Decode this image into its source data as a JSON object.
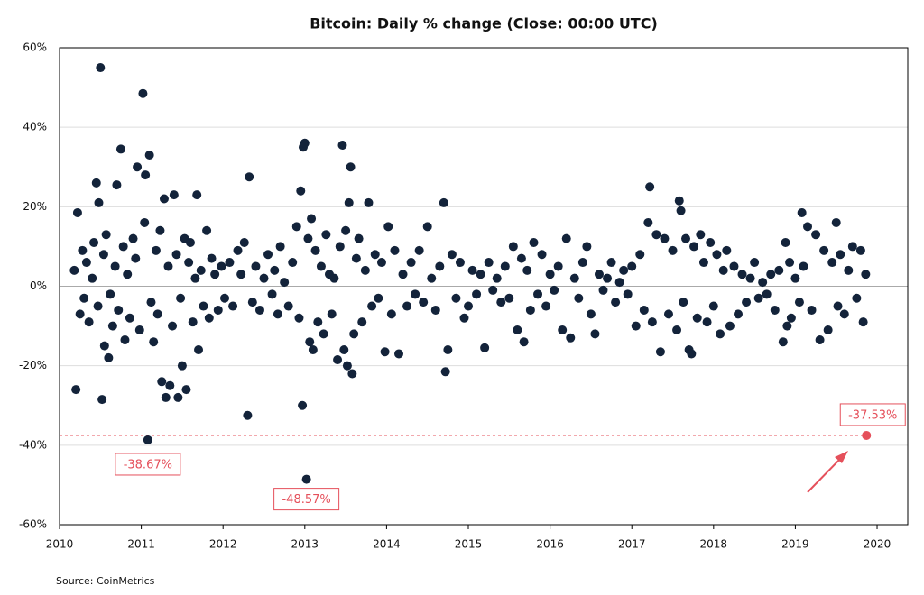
{
  "chart_data": {
    "type": "scatter",
    "title": "Bitcoin: Daily % change (Close: 00:00 UTC)",
    "source": "Source: CoinMetrics",
    "xlim": [
      2010,
      2020.375
    ],
    "xticks": [
      2010,
      2011,
      2012,
      2013,
      2014,
      2015,
      2016,
      2017,
      2018,
      2019,
      2020
    ],
    "ylim": [
      -60,
      60
    ],
    "yticks": [
      {
        "value": -60,
        "label": "-60%"
      },
      {
        "value": -40,
        "label": "-40%"
      },
      {
        "value": -20,
        "label": "-20%"
      },
      {
        "value": 0,
        "label": "0%"
      },
      {
        "value": 20,
        "label": "20%"
      },
      {
        "value": 40,
        "label": "40%"
      },
      {
        "value": 60,
        "label": "60%"
      }
    ],
    "grid": true,
    "series": [
      {
        "color": "#13233a",
        "x": [
          2010.18,
          2010.2,
          2010.22,
          2010.25,
          2010.28,
          2010.3,
          2010.33,
          2010.36,
          2010.4,
          2010.42,
          2010.45,
          2010.47,
          2010.48,
          2010.5,
          2010.52,
          2010.54,
          2010.55,
          2010.57,
          2010.6,
          2010.62,
          2010.65,
          2010.68,
          2010.7,
          2010.72,
          2010.75,
          2010.78,
          2010.8,
          2010.83,
          2010.86,
          2010.9,
          2010.93,
          2010.95,
          2010.98,
          2011.02,
          2011.04,
          2011.05,
          2011.08,
          2011.1,
          2011.12,
          2011.15,
          2011.18,
          2011.2,
          2011.23,
          2011.25,
          2011.28,
          2011.3,
          2011.33,
          2011.35,
          2011.38,
          2011.4,
          2011.43,
          2011.45,
          2011.48,
          2011.5,
          2011.53,
          2011.55,
          2011.58,
          2011.6,
          2011.63,
          2011.66,
          2011.68,
          2011.7,
          2011.73,
          2011.76,
          2011.8,
          2011.83,
          2011.86,
          2011.9,
          2011.94,
          2011.98,
          2012.02,
          2012.08,
          2012.12,
          2012.18,
          2012.22,
          2012.26,
          2012.3,
          2012.32,
          2012.36,
          2012.4,
          2012.45,
          2012.5,
          2012.55,
          2012.6,
          2012.63,
          2012.67,
          2012.7,
          2012.75,
          2012.8,
          2012.85,
          2012.9,
          2012.93,
          2012.95,
          2012.97,
          2012.98,
          2013.0,
          2013.02,
          2013.04,
          2013.06,
          2013.08,
          2013.1,
          2013.13,
          2013.16,
          2013.2,
          2013.23,
          2013.26,
          2013.3,
          2013.33,
          2013.36,
          2013.4,
          2013.43,
          2013.46,
          2013.48,
          2013.5,
          2013.52,
          2013.54,
          2013.56,
          2013.58,
          2013.6,
          2013.63,
          2013.66,
          2013.7,
          2013.74,
          2013.78,
          2013.82,
          2013.86,
          2013.9,
          2013.94,
          2013.98,
          2014.02,
          2014.06,
          2014.1,
          2014.15,
          2014.2,
          2014.25,
          2014.3,
          2014.35,
          2014.4,
          2014.45,
          2014.5,
          2014.55,
          2014.6,
          2014.65,
          2014.7,
          2014.72,
          2014.75,
          2014.8,
          2014.85,
          2014.9,
          2014.95,
          2015.0,
          2015.05,
          2015.1,
          2015.15,
          2015.2,
          2015.25,
          2015.3,
          2015.35,
          2015.4,
          2015.45,
          2015.5,
          2015.55,
          2015.6,
          2015.65,
          2015.68,
          2015.72,
          2015.76,
          2015.8,
          2015.85,
          2015.9,
          2015.95,
          2016.0,
          2016.05,
          2016.1,
          2016.15,
          2016.2,
          2016.25,
          2016.3,
          2016.35,
          2016.4,
          2016.45,
          2016.5,
          2016.55,
          2016.6,
          2016.65,
          2016.7,
          2016.75,
          2016.8,
          2016.85,
          2016.9,
          2016.95,
          2017.0,
          2017.05,
          2017.1,
          2017.15,
          2017.2,
          2017.22,
          2017.25,
          2017.3,
          2017.35,
          2017.4,
          2017.45,
          2017.5,
          2017.55,
          2017.58,
          2017.6,
          2017.63,
          2017.66,
          2017.7,
          2017.73,
          2017.76,
          2017.8,
          2017.84,
          2017.88,
          2017.92,
          2017.96,
          2018.0,
          2018.04,
          2018.08,
          2018.12,
          2018.16,
          2018.2,
          2018.25,
          2018.3,
          2018.35,
          2018.4,
          2018.45,
          2018.5,
          2018.55,
          2018.6,
          2018.65,
          2018.7,
          2018.75,
          2018.8,
          2018.85,
          2018.88,
          2018.9,
          2018.93,
          2018.95,
          2019.0,
          2019.05,
          2019.08,
          2019.1,
          2019.15,
          2019.2,
          2019.25,
          2019.3,
          2019.35,
          2019.4,
          2019.45,
          2019.5,
          2019.52,
          2019.55,
          2019.6,
          2019.65,
          2019.7,
          2019.75,
          2019.8,
          2019.83,
          2019.86
        ],
        "values": [
          4,
          -26,
          18.5,
          -7,
          9,
          -3,
          6,
          -9,
          2,
          11,
          26,
          -5,
          21,
          55,
          -28.5,
          8,
          -15,
          13,
          -18,
          -2,
          -10,
          5,
          25.5,
          -6,
          34.5,
          10,
          -13.5,
          3,
          -8,
          12,
          7,
          30,
          -11,
          48.5,
          16,
          28,
          -38.67,
          33,
          -4,
          -14,
          9,
          -7,
          14,
          -24,
          22,
          -28,
          5,
          -25,
          -10,
          23,
          8,
          -28,
          -3,
          -20,
          12,
          -26,
          6,
          11,
          -9,
          2,
          23,
          -16,
          4,
          -5,
          14,
          -8,
          7,
          3,
          -6,
          5,
          -3,
          6,
          -5,
          9,
          3,
          11,
          -32.5,
          27.5,
          -4,
          5,
          -6,
          2,
          8,
          -2,
          4,
          -7,
          10,
          1,
          -5,
          6,
          15,
          -8,
          24,
          -30,
          35,
          36,
          -48.57,
          12,
          -14,
          17,
          -16,
          9,
          -9,
          5,
          -12,
          13,
          3,
          -7,
          2,
          -18.5,
          10,
          35.5,
          -16,
          14,
          -20,
          21,
          30,
          -22,
          -12,
          7,
          12,
          -9,
          4,
          21,
          -5,
          8,
          -3,
          6,
          -16.5,
          15,
          -7,
          9,
          -17,
          3,
          -5,
          6,
          -2,
          9,
          -4,
          15,
          2,
          -6,
          5,
          21,
          -21.5,
          -16,
          8,
          -3,
          6,
          -8,
          -5,
          4,
          -2,
          3,
          -15.5,
          6,
          -1,
          2,
          -4,
          5,
          -3,
          10,
          -11,
          7,
          -14,
          4,
          -6,
          11,
          -2,
          8,
          -5,
          3,
          -1,
          5,
          -11,
          12,
          -13,
          2,
          -3,
          6,
          10,
          -7,
          -12,
          3,
          -1,
          2,
          6,
          -4,
          1,
          4,
          -2,
          5,
          -10,
          8,
          -6,
          16,
          25,
          -9,
          13,
          -16.5,
          12,
          -7,
          9,
          -11,
          21.5,
          19,
          -4,
          12,
          -16,
          -17,
          10,
          -8,
          13,
          6,
          -9,
          11,
          -5,
          8,
          -12,
          4,
          9,
          -10,
          5,
          -7,
          3,
          -4,
          2,
          6,
          -3,
          1,
          -2,
          3,
          -6,
          4,
          -14,
          11,
          -10,
          6,
          -8,
          2,
          -4,
          18.5,
          5,
          15,
          -6,
          13,
          -13.5,
          9,
          -11,
          6,
          16,
          -5,
          8,
          -7,
          4,
          10,
          -3,
          9,
          -9,
          3
        ]
      },
      {
        "color": "#e5505b",
        "x": [
          2019.87
        ],
        "values": [
          -37.53
        ]
      }
    ],
    "annotations": [
      {
        "x": 2011.08,
        "value": -38.67,
        "label": "-38.67%"
      },
      {
        "x": 2013.02,
        "value": -48.57,
        "label": "-48.57%"
      },
      {
        "x": 2019.87,
        "value": -37.53,
        "label": "-37.53%"
      }
    ],
    "annotation_color": "#e5505b"
  }
}
